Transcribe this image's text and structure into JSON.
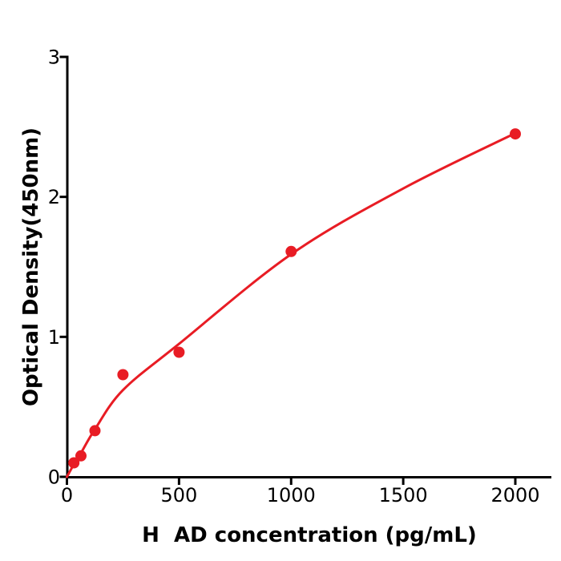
{
  "figure": {
    "background_color": "#ffffff",
    "axis_color": "#000000",
    "accent_color": "#e81c24"
  },
  "chart_data": {
    "type": "scatter",
    "title": "",
    "xlabel": "H  AD concentration (pg/mL)",
    "ylabel": "Optical Density(450nm)",
    "xlim": [
      0,
      2160
    ],
    "ylim": [
      0,
      3
    ],
    "x_ticks": [
      0,
      500,
      1000,
      1500,
      2000
    ],
    "y_ticks": [
      0,
      1,
      2,
      3
    ],
    "grid": false,
    "legend": null,
    "point_color": "#e81c24",
    "line_color": "#e81c24",
    "series": [
      {
        "name": "standard-points",
        "type": "scatter",
        "x": [
          31.25,
          62.5,
          125,
          250,
          500,
          1000,
          2000
        ],
        "y": [
          0.1,
          0.15,
          0.33,
          0.73,
          0.89,
          1.61,
          2.45
        ]
      },
      {
        "name": "fit-curve",
        "type": "line",
        "points": [
          [
            0,
            0
          ],
          [
            31.25,
            0.09
          ],
          [
            62.5,
            0.17
          ],
          [
            125,
            0.34
          ],
          [
            250,
            0.62
          ],
          [
            500,
            0.95
          ],
          [
            1000,
            1.59
          ],
          [
            1500,
            2.06
          ],
          [
            2000,
            2.455
          ]
        ]
      }
    ]
  }
}
